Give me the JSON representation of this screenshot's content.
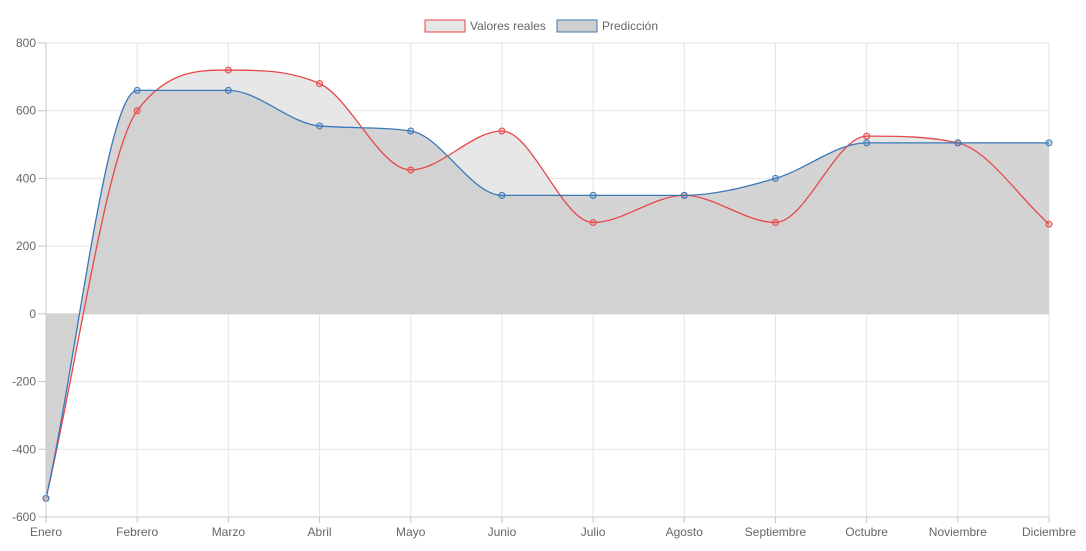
{
  "chart_data": {
    "type": "line",
    "categories": [
      "Enero",
      "Febrero",
      "Marzo",
      "Abril",
      "Mayo",
      "Junio",
      "Julio",
      "Agosto",
      "Septiembre",
      "Octubre",
      "Noviembre",
      "Diciembre"
    ],
    "series": [
      {
        "name": "Valores reales",
        "values": [
          -545,
          600,
          720,
          680,
          425,
          540,
          270,
          350,
          270,
          525,
          505,
          265
        ],
        "color": "#e8474a",
        "fill": "#e6e6e6"
      },
      {
        "name": "Predicción",
        "values": [
          -545,
          660,
          660,
          555,
          540,
          350,
          350,
          350,
          400,
          505,
          505,
          505
        ],
        "color": "#3a78b8",
        "fill": "#cfcfcf"
      }
    ],
    "yticks": [
      "800",
      "600",
      "400",
      "200",
      "0",
      "-200",
      "-400",
      "-600"
    ],
    "ylim": [
      -600,
      800
    ],
    "legend_position": "top",
    "grid": true,
    "title": "",
    "xlabel": "",
    "ylabel": ""
  }
}
